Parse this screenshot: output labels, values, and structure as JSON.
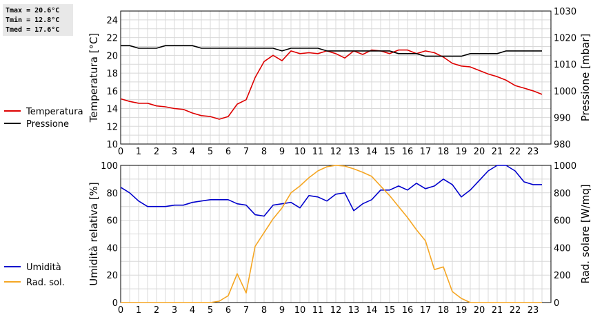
{
  "stats": {
    "tmax": "Tmax = 20.6°C",
    "tmin": "Tmin = 12.8°C",
    "tmed": "Tmed = 17.6°C"
  },
  "colors": {
    "temperature": "#dd0000",
    "pressure": "#000000",
    "humidity": "#0000cc",
    "solar": "#f5a623",
    "grid": "#d8d8d8"
  },
  "chart_data": [
    {
      "type": "line",
      "title": "",
      "ylabel": "Temperatura [°C]",
      "y2label": "Pressione [mbar]",
      "xlim": [
        0,
        24
      ],
      "ylim": [
        10,
        25
      ],
      "y2lim": [
        980,
        1030
      ],
      "x_ticks": [
        0,
        1,
        2,
        3,
        4,
        5,
        6,
        7,
        8,
        9,
        10,
        11,
        12,
        13,
        14,
        15,
        16,
        17,
        18,
        19,
        20,
        21,
        22,
        23
      ],
      "y_ticks": [
        10,
        12,
        14,
        16,
        18,
        20,
        22,
        24
      ],
      "y2_ticks": [
        980,
        990,
        1000,
        1010,
        1020,
        1030
      ],
      "grid": true,
      "legend_position": "left",
      "series": [
        {
          "name": "Temperatura",
          "axis": "left",
          "x": [
            0,
            0.5,
            1,
            1.5,
            2,
            2.5,
            3,
            3.5,
            4,
            4.5,
            5,
            5.5,
            6,
            6.5,
            7,
            7.5,
            8,
            8.5,
            9,
            9.5,
            10,
            10.5,
            11,
            11.5,
            12,
            12.5,
            13,
            13.5,
            14,
            14.5,
            15,
            15.5,
            16,
            16.5,
            17,
            17.5,
            18,
            18.5,
            19,
            19.5,
            20,
            20.5,
            21,
            21.5,
            22,
            22.5,
            23,
            23.5
          ],
          "y": [
            15.1,
            14.8,
            14.6,
            14.6,
            14.3,
            14.2,
            14.0,
            13.9,
            13.5,
            13.2,
            13.1,
            12.8,
            13.1,
            14.5,
            15.0,
            17.5,
            19.3,
            20.0,
            19.4,
            20.5,
            20.2,
            20.3,
            20.2,
            20.5,
            20.2,
            19.7,
            20.5,
            20.1,
            20.6,
            20.5,
            20.2,
            20.6,
            20.6,
            20.2,
            20.5,
            20.3,
            19.8,
            19.1,
            18.8,
            18.7,
            18.3,
            17.9,
            17.6,
            17.2,
            16.6,
            16.3,
            16.0,
            15.6
          ]
        },
        {
          "name": "Pressione",
          "axis": "right",
          "x": [
            0,
            0.5,
            1,
            1.5,
            2,
            2.5,
            3,
            3.5,
            4,
            4.5,
            5,
            5.5,
            6,
            6.5,
            7,
            7.5,
            8,
            8.5,
            9,
            9.5,
            10,
            10.5,
            11,
            11.5,
            12,
            12.5,
            13,
            13.5,
            14,
            14.5,
            15,
            15.5,
            16,
            16.5,
            17,
            17.5,
            18,
            18.5,
            19,
            19.5,
            20,
            20.5,
            21,
            21.5,
            22,
            22.5,
            23,
            23.5
          ],
          "y": [
            1017,
            1017,
            1016,
            1016,
            1016,
            1017,
            1017,
            1017,
            1017,
            1016,
            1016,
            1016,
            1016,
            1016,
            1016,
            1016,
            1016,
            1016,
            1015,
            1016,
            1016,
            1016,
            1016,
            1015,
            1015,
            1015,
            1015,
            1015,
            1015,
            1015,
            1015,
            1014,
            1014,
            1014,
            1013,
            1013,
            1013,
            1013,
            1013,
            1014,
            1014,
            1014,
            1014,
            1015,
            1015,
            1015,
            1015,
            1015
          ]
        }
      ]
    },
    {
      "type": "line",
      "title": "",
      "ylabel": "Umidità relativa [%]",
      "y2label": "Rad. solare [W/mq]",
      "xlim": [
        0,
        24
      ],
      "ylim": [
        0,
        100
      ],
      "y2lim": [
        0,
        1000
      ],
      "x_ticks": [
        0,
        1,
        2,
        3,
        4,
        5,
        6,
        7,
        8,
        9,
        10,
        11,
        12,
        13,
        14,
        15,
        16,
        17,
        18,
        19,
        20,
        21,
        22,
        23
      ],
      "y_ticks": [
        0,
        20,
        40,
        60,
        80,
        100
      ],
      "y2_ticks": [
        0,
        200,
        400,
        600,
        800,
        1000
      ],
      "grid": true,
      "legend_position": "left",
      "series": [
        {
          "name": "Umidità",
          "axis": "left",
          "x": [
            0,
            0.5,
            1,
            1.5,
            2,
            2.5,
            3,
            3.5,
            4,
            4.5,
            5,
            5.5,
            6,
            6.5,
            7,
            7.5,
            8,
            8.5,
            9,
            9.5,
            10,
            10.5,
            11,
            11.5,
            12,
            12.5,
            13,
            13.5,
            14,
            14.5,
            15,
            15.5,
            16,
            16.5,
            17,
            17.5,
            18,
            18.5,
            19,
            19.5,
            20,
            20.5,
            21,
            21.5,
            22,
            22.5,
            23,
            23.5
          ],
          "y": [
            84,
            80,
            74,
            70,
            70,
            70,
            71,
            71,
            73,
            74,
            75,
            75,
            75,
            72,
            71,
            64,
            63,
            71,
            72,
            73,
            69,
            78,
            77,
            74,
            79,
            80,
            67,
            72,
            75,
            82,
            82,
            85,
            82,
            87,
            83,
            85,
            90,
            86,
            77,
            82,
            89,
            96,
            100,
            100,
            96,
            88,
            86,
            86
          ]
        },
        {
          "name": "Rad. sol.",
          "axis": "right",
          "x": [
            0,
            0.5,
            1,
            1.5,
            2,
            2.5,
            3,
            3.5,
            4,
            4.5,
            5,
            5.5,
            6,
            6.5,
            7,
            7.5,
            8,
            8.5,
            9,
            9.5,
            10,
            10.5,
            11,
            11.5,
            12,
            12.5,
            13,
            13.5,
            14,
            14.5,
            15,
            15.5,
            16,
            16.5,
            17,
            17.5,
            18,
            18.5,
            19,
            19.5,
            20,
            20.5,
            21,
            21.5,
            22,
            22.5,
            23,
            23.5
          ],
          "y": [
            0,
            0,
            0,
            0,
            0,
            0,
            0,
            0,
            0,
            0,
            0,
            10,
            50,
            210,
            70,
            410,
            510,
            610,
            690,
            800,
            850,
            910,
            960,
            990,
            1000,
            995,
            975,
            950,
            920,
            850,
            780,
            700,
            620,
            530,
            450,
            240,
            260,
            80,
            30,
            0,
            0,
            0,
            0,
            0,
            0,
            0,
            0,
            0
          ]
        }
      ]
    }
  ]
}
